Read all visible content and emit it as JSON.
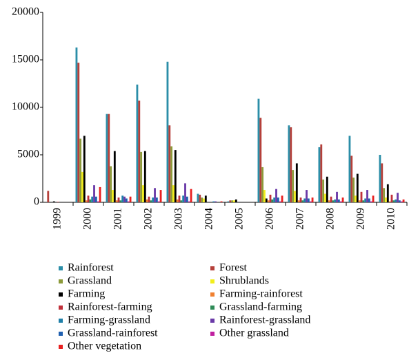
{
  "chart_data": {
    "type": "bar",
    "categories": [
      "1999",
      "2000",
      "2001",
      "2002",
      "2003",
      "2004",
      "2005",
      "2006",
      "2007",
      "2008",
      "2009",
      "2010"
    ],
    "series": [
      {
        "name": "Rainforest",
        "color": "#2b8ea8",
        "values": [
          0,
          16300,
          9300,
          12400,
          14800,
          900,
          100,
          10900,
          8100,
          5800,
          7000,
          5000
        ]
      },
      {
        "name": "Forest",
        "color": "#b5403a",
        "values": [
          1200,
          14700,
          9300,
          10700,
          8100,
          800,
          200,
          8900,
          7900,
          6100,
          4900,
          4100
        ]
      },
      {
        "name": "Grassland",
        "color": "#8c9a3a",
        "values": [
          0,
          6700,
          3800,
          5300,
          5900,
          500,
          200,
          3700,
          3400,
          2400,
          2600,
          1500
        ]
      },
      {
        "name": "Shrublands",
        "color": "#f2ee1c",
        "values": [
          0,
          3200,
          1300,
          1800,
          1800,
          400,
          200,
          1300,
          1200,
          900,
          700,
          500
        ]
      },
      {
        "name": "Farming",
        "color": "#000000",
        "values": [
          100,
          7000,
          5400,
          5400,
          5500,
          700,
          300,
          400,
          4100,
          2700,
          3000,
          1900
        ]
      },
      {
        "name": "Farming-rainforest",
        "color": "#f08030",
        "values": [
          0,
          200,
          200,
          300,
          300,
          0,
          0,
          200,
          200,
          200,
          200,
          100
        ]
      },
      {
        "name": "Rainforest-farming",
        "color": "#c0303a",
        "values": [
          50,
          700,
          500,
          600,
          700,
          0,
          0,
          800,
          500,
          600,
          1100,
          800
        ]
      },
      {
        "name": "Grassland-farming",
        "color": "#2e8b57",
        "values": [
          0,
          300,
          200,
          200,
          200,
          0,
          0,
          300,
          200,
          200,
          200,
          200
        ]
      },
      {
        "name": "Farming-grassland",
        "color": "#1f7fa8",
        "values": [
          0,
          600,
          700,
          500,
          700,
          100,
          0,
          500,
          400,
          300,
          400,
          300
        ]
      },
      {
        "name": "Rainforest-grassland",
        "color": "#6a3aa8",
        "values": [
          0,
          1800,
          600,
          1500,
          2000,
          100,
          0,
          1400,
          1300,
          1100,
          1300,
          1000
        ]
      },
      {
        "name": "Grassland-rainforest",
        "color": "#2060b0",
        "values": [
          0,
          600,
          400,
          500,
          600,
          0,
          0,
          500,
          400,
          300,
          400,
          200
        ]
      },
      {
        "name": "Other grassland",
        "color": "#c020a0",
        "values": [
          0,
          100,
          100,
          100,
          100,
          0,
          0,
          100,
          100,
          100,
          100,
          100
        ]
      },
      {
        "name": "Other vegetation",
        "color": "#e82020",
        "values": [
          0,
          1600,
          600,
          1300,
          1400,
          100,
          0,
          700,
          500,
          500,
          700,
          300
        ]
      }
    ],
    "ylim": [
      0,
      20000
    ],
    "yticks": [
      0,
      5000,
      10000,
      15000,
      20000
    ],
    "grid": false
  }
}
